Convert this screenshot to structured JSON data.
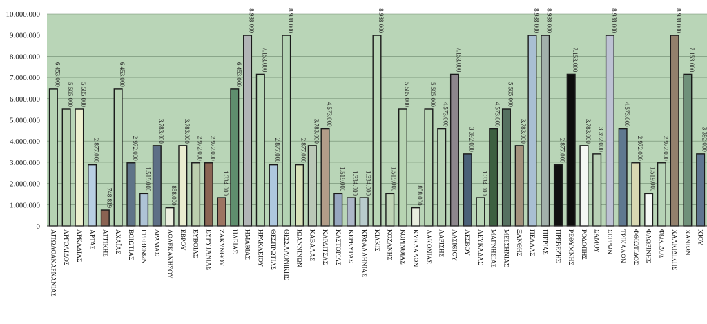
{
  "chart_data": {
    "type": "bar",
    "title": "",
    "xlabel": "",
    "ylabel": "",
    "ylim": [
      0,
      10000000
    ],
    "yticks": [
      "0",
      "1.000.000",
      "2.000.000",
      "3.000.000",
      "4.000.000",
      "5.000.000",
      "6.000.000",
      "7.000.000",
      "8.000.000",
      "9.000.000",
      "10.000.000"
    ],
    "grid": true,
    "legend": "none",
    "plot_background": "#b9d5b7",
    "categories": [
      "ΑΙΤΩΛΟΑΚΑΡΝΑΝΙΑΣ",
      "ΑΡΓΟΛΙΔΟΣ",
      "ΑΡΚΑΔΙΑΣ",
      "ΑΡΤΑΣ",
      "ΑΤΤΙΚΗΣ",
      "ΑΧΑΪΑΣ",
      "ΒΟΙΩΤΙΑΣ",
      "ΓΡΕΒΕΝΩΝ",
      "ΔΡΑΜΑΣ",
      "ΔΩΔΕΚΑΝΗΣΟΥ",
      "ΕΒΡΟΥ",
      "ΕΥΒΟΙΑΣ",
      "ΕΥΡΥΤΑΝΙΑΣ",
      "ΖΑΚΥΝΘΟΥ",
      "ΗΛΕΙΑΣ",
      "ΗΜΑΘΙΑΣ",
      "ΗΡΑΚΛΕΙΟΥ",
      "ΘΕΣΠΡΩΤΙΑΣ",
      "ΘΕΣΣΑΛΟΝΙΚΗΣ",
      "ΙΩΑΝΝΙΝΩΝ",
      "ΚΑΒΑΛΑΣ",
      "ΚΑΡΔΙΤΣΑΣ",
      "ΚΑΣΤΟΡΙΑΣ",
      "ΚΕΡΚΥΡΑΣ",
      "ΚΕΦΑΛΛΗΝΙΑΣ",
      "ΚΙΛΚΙΣ",
      "ΚΟΖΑΝΗΣ",
      "ΚΟΡΙΝΘΙΑΣ",
      "ΚΥΚΛΑΔΩΝ",
      "ΛΑΚΩΝΙΑΣ",
      "ΛΑΡΙΣΗΣ",
      "ΛΑΣΙΘΙΟΥ",
      "ΛΕΣΒΟΥ",
      "ΛΕΥΚΑΔΑΣ",
      "ΜΑΓΝΗΣΙΑΣ",
      "ΜΕΣΣΗΝΙΑΣ",
      "ΞΑΝΘΗΣ",
      "ΠΕΛΛΑΣ",
      "ΠΙΕΡΙΑΣ",
      "ΠΡΕΒΕΖΗΣ",
      "ΡΕΘΥΜΝΗΣ",
      "ΡΟΔΟΠΗΣ",
      "ΣΑΜΟΥ",
      "ΣΕΡΡΩΝ",
      "ΤΡΙΚΑΛΩΝ",
      "ΦΘΙΩΤΙΔΟΣ",
      "ΦΛΩΡΙΝΗΣ",
      "ΦΩΚΙΔΟΣ",
      "ΧΑΛΚΙΔΙΚΗΣ",
      "ΧΑΝΙΩΝ",
      "ΧΙΟΥ"
    ],
    "values": [
      6453000,
      5505000,
      5505000,
      2877000,
      748819,
      6453000,
      2972000,
      1519000,
      3783000,
      858000,
      3783000,
      2972000,
      2972000,
      1334000,
      6453000,
      8988000,
      7153000,
      2877000,
      8988000,
      2877000,
      3783000,
      4573000,
      1519000,
      1334000,
      1334000,
      8988000,
      1519000,
      5505000,
      858000,
      5505000,
      4573000,
      7153000,
      3392000,
      1334000,
      4573000,
      5505000,
      3783000,
      8988000,
      8988000,
      2877000,
      7153000,
      3783000,
      3392000,
      8988000,
      4573000,
      2972000,
      1519000,
      2972000,
      8988000,
      7153000,
      3392000
    ],
    "data_labels": [
      "6.453.000",
      "5.505.000",
      "5.505.000",
      "2.877.000",
      "748.819",
      "6.453.000",
      "2.972.000",
      "1.519.000",
      "3.783.000",
      "858.000",
      "3.783.000",
      "2.972.000",
      "2.972.000",
      "1.334.000",
      "6.453.000",
      "8.988.000",
      "7.153.000",
      "2.877.000",
      "8.988.000",
      "2.877.000",
      "3.783.000",
      "4.573.000",
      "1.519.000",
      "1.334.000",
      "1.334.000",
      "8.988.000",
      "1.519.000",
      "5.505.000",
      "858.000",
      "5.505.000",
      "4.573.000",
      "7.153.000",
      "3.392.000",
      "1.334.000",
      "4.573.000",
      "5.505.000",
      "3.783.000",
      "8.988.000",
      "8.988.000",
      "2.877.000",
      "7.153.000",
      "3.783.000",
      "3.392.000",
      "8.988.000",
      "4.573.000",
      "2.972.000",
      "1.519.000",
      "2.972.000",
      "8.988.000",
      "7.153.000",
      "3.392.000"
    ],
    "colors": [
      "#b5d3b3",
      "#b4cfae",
      "#edf0cf",
      "#b8cfe3",
      "#8a6252",
      "#b7d3b3",
      "#5f7488",
      "#aec3d6",
      "#5d6f86",
      "#ecefdf",
      "#e9edcf",
      "#bccfae",
      "#8a6554",
      "#9c7462",
      "#5f8e6e",
      "#b1b4b6",
      "#b7d6b5",
      "#aec7de",
      "#b3d3b3",
      "#d8e1b8",
      "#bac8b7",
      "#b29c89",
      "#96a6bf",
      "#adb7c8",
      "#b8cbcc",
      "#b9d6b6",
      "#bfd4b6",
      "#b7d4b2",
      "#e8eddf",
      "#b7d4b3",
      "#b6d1b3",
      "#8d868c",
      "#4a6078",
      "#b9d5b7",
      "#3c6040",
      "#557060",
      "#a3917c",
      "#a9bfd3",
      "#a2b0ab",
      "#111111",
      "#0d0d0d",
      "#f4f7f3",
      "#b8d0b5",
      "#bdc2d3",
      "#5f7890",
      "#d8d7b2",
      "#f5f9f6",
      "#b6d3b6",
      "#93806c",
      "#6f907a",
      "#5f7590"
    ]
  }
}
